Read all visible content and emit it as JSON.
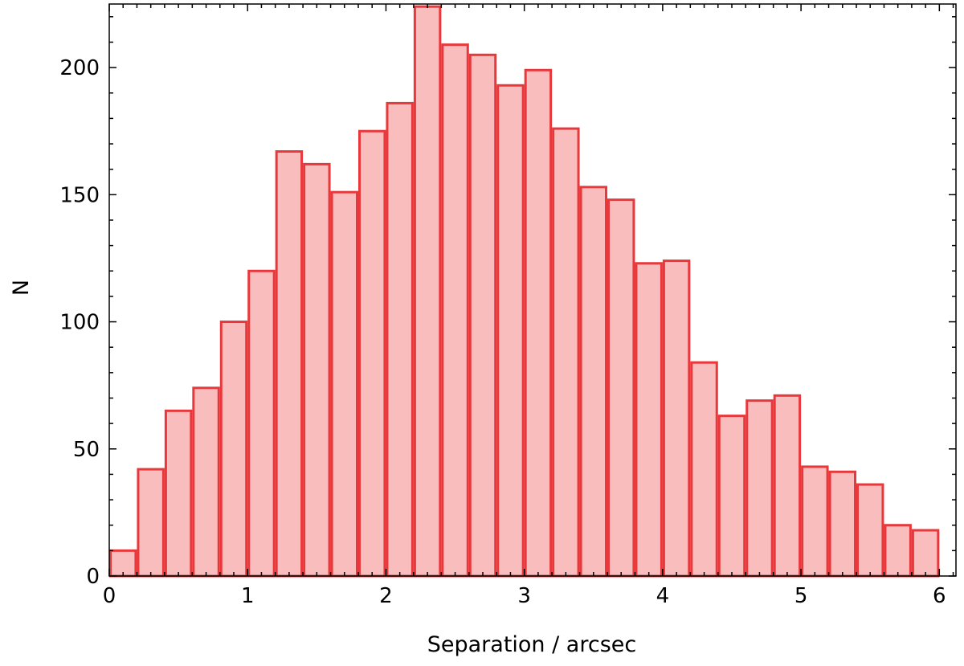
{
  "chart_data": {
    "type": "bar",
    "histogram": true,
    "xlabel": "Separation / arcsec",
    "ylabel": "N",
    "xlim": [
      0,
      6.12
    ],
    "ylim": [
      0,
      225
    ],
    "grid": false,
    "bin_width": 0.2,
    "bin_starts": [
      0.0,
      0.2,
      0.4,
      0.6,
      0.8,
      1.0,
      1.2,
      1.4,
      1.6,
      1.8,
      2.0,
      2.2,
      2.4,
      2.6,
      2.8,
      3.0,
      3.2,
      3.4,
      3.6,
      3.8,
      4.0,
      4.2,
      4.4,
      4.6,
      4.8,
      5.0,
      5.2,
      5.4,
      5.6,
      5.8
    ],
    "values": [
      10,
      42,
      65,
      74,
      100,
      120,
      167,
      162,
      151,
      175,
      186,
      224,
      209,
      205,
      193,
      199,
      176,
      153,
      148,
      123,
      124,
      84,
      63,
      69,
      71,
      43,
      41,
      36,
      20,
      18
    ],
    "x_ticks": [
      0,
      1,
      2,
      3,
      4,
      5,
      6
    ],
    "y_ticks": [
      0,
      50,
      100,
      150,
      200
    ],
    "colors": {
      "fill": "#f9bdbd",
      "edge": "#e8383b"
    }
  }
}
